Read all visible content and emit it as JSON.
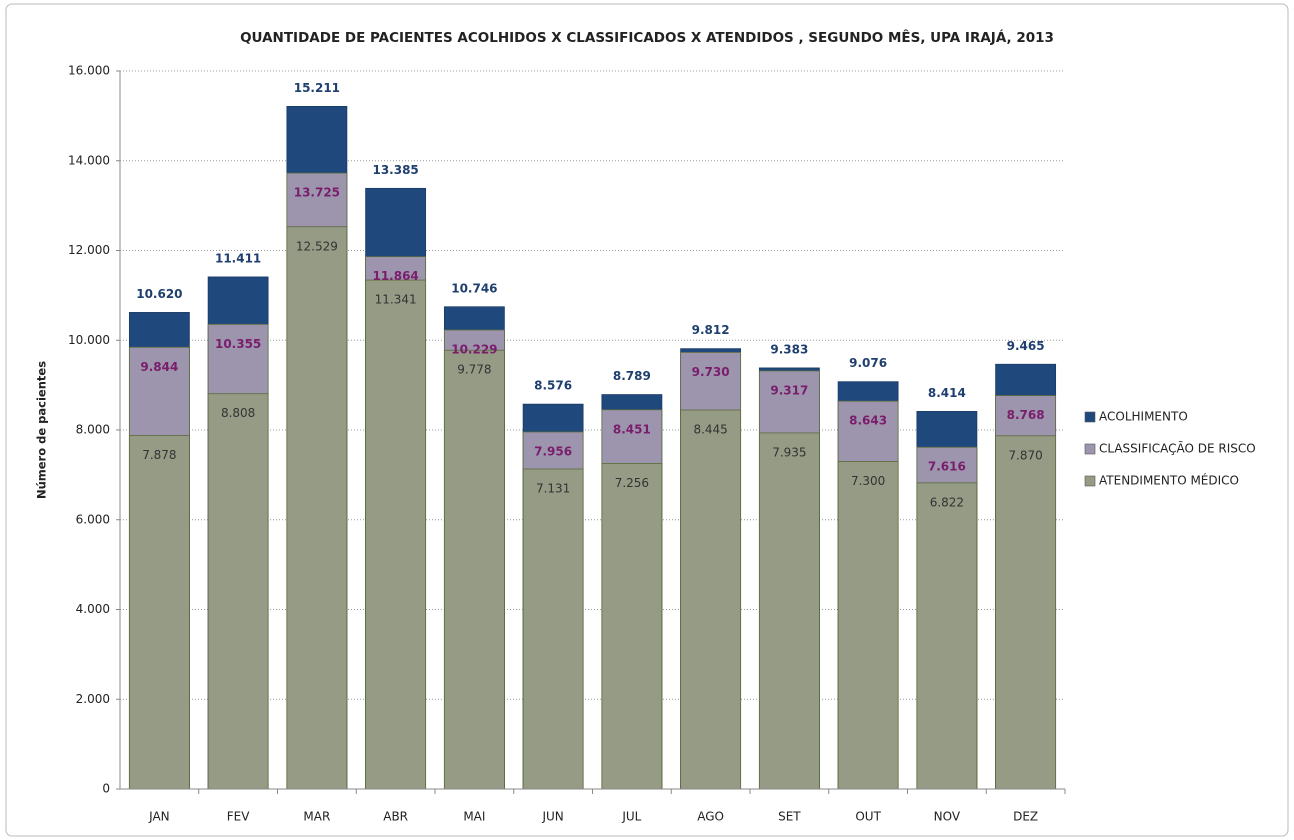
{
  "chart_data": {
    "type": "overlap_bar",
    "title": "QUANTIDADE DE PACIENTES ACOLHIDOS  X  CLASSIFICADOS X ATENDIDOS , SEGUNDO MÊS, UPA IRAJÁ, 2013",
    "y_label": "Número de pacientes",
    "categories": [
      "JAN",
      "FEV",
      "MAR",
      "ABR",
      "MAI",
      "JUN",
      "JUL",
      "AGO",
      "SET",
      "OUT",
      "NOV",
      "DEZ"
    ],
    "series": [
      {
        "name": "ACOLHIMENTO",
        "color": "#1f497d",
        "values": [
          10620,
          11411,
          15211,
          13385,
          10746,
          8576,
          8789,
          9812,
          9383,
          9076,
          8414,
          9465
        ],
        "value_labels": [
          "10.620",
          "11.411",
          "15.211",
          "13.385",
          "10.746",
          "8.576",
          "8.789",
          "9.812",
          "9.383",
          "9.076",
          "8.414",
          "9.465"
        ]
      },
      {
        "name": "CLASSIFICAÇÃO DE RISCO",
        "color": "#9d95ae",
        "values": [
          9844,
          10355,
          13725,
          11864,
          10229,
          7956,
          8451,
          9730,
          9317,
          8643,
          7616,
          8768
        ],
        "value_labels": [
          "9.844",
          "10.355",
          "13.725",
          "11.864",
          "10.229",
          "7.956",
          "8.451",
          "9.730",
          "9.317",
          "8.643",
          "7.616",
          "8.768"
        ]
      },
      {
        "name": "ATENDIMENTO  MÉDICO",
        "color": "#969b86",
        "values": [
          7878,
          8808,
          12529,
          11341,
          9778,
          7131,
          7256,
          8445,
          7935,
          7300,
          6822,
          7870
        ],
        "value_labels": [
          "7.878",
          "8.808",
          "12.529",
          "11.341",
          "9.778",
          "7.131",
          "7.256",
          "8.445",
          "7.935",
          "7.300",
          "6.822",
          "7.870"
        ]
      }
    ],
    "ylim": [
      0,
      16000
    ],
    "yticks": [
      0,
      {
        "value": 2000,
        "label": "2.000"
      },
      {
        "value": 4000,
        "label": "4.000"
      },
      {
        "value": 6000,
        "label": "6.000"
      },
      {
        "value": 8000,
        "label": "8.000"
      },
      {
        "value": 10000,
        "label": "10.000"
      },
      {
        "value": 12000,
        "label": "12.000"
      },
      {
        "value": 14000,
        "label": "14.000"
      },
      {
        "value": 16000,
        "label": "16.000"
      }
    ],
    "grid": true
  }
}
